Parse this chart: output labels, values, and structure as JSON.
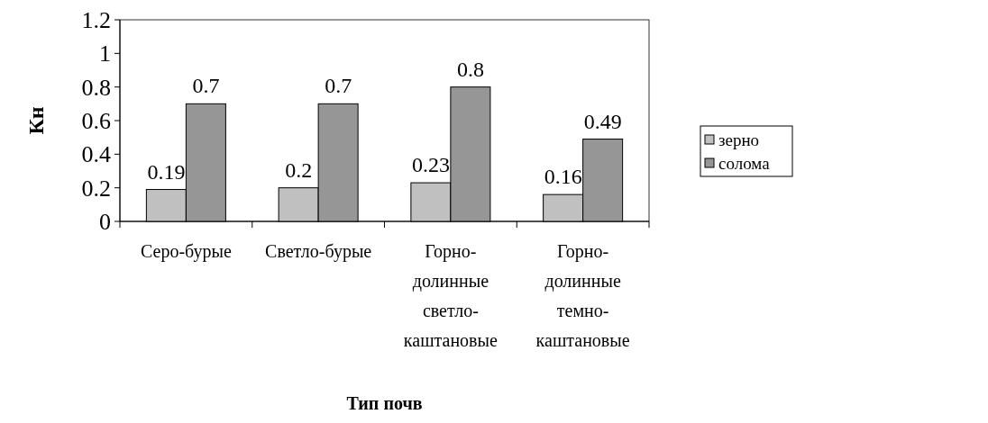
{
  "chart_data": {
    "type": "bar",
    "xlabel": "Тип почв",
    "ylabel": "Кн",
    "categories": [
      "Серо-бурые",
      "Светло-бурые",
      "Горно-\nдолинные\nсветло-\nкаштановые",
      "Горно-\nдолинные\nтемно-\nкаштановые"
    ],
    "series": [
      {
        "name": "зерно",
        "color": "#c0c0c0",
        "values": [
          0.19,
          0.2,
          0.23,
          0.16
        ]
      },
      {
        "name": "солома",
        "color": "#969696",
        "values": [
          0.7,
          0.7,
          0.8,
          0.49
        ]
      }
    ],
    "ylim": [
      0,
      1.2
    ],
    "yticks": [
      0,
      0.2,
      0.4,
      0.6,
      0.8,
      1,
      1.2
    ],
    "data_labels": true,
    "legend": "right",
    "grid": false
  }
}
